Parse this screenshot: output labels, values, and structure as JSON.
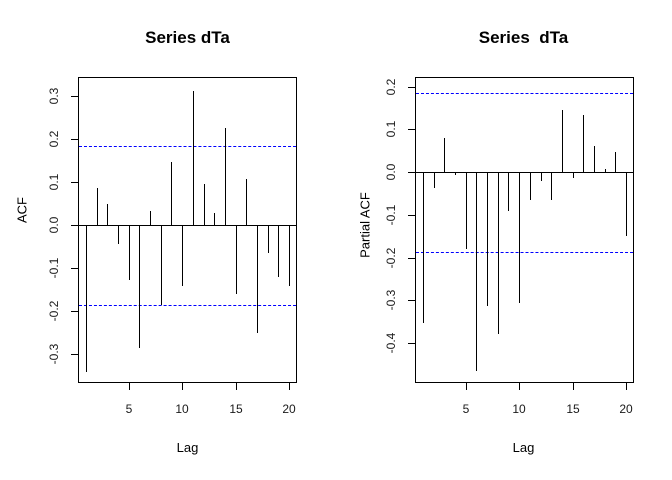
{
  "window": {
    "background": "#ffffff"
  },
  "chart_data": [
    {
      "type": "bar",
      "title": "Series dTa",
      "xlabel": "Lag",
      "ylabel": "ACF",
      "x": [
        1,
        2,
        3,
        4,
        5,
        6,
        7,
        8,
        9,
        10,
        11,
        12,
        13,
        14,
        15,
        16,
        17,
        18,
        19,
        20
      ],
      "values": [
        -0.343,
        0.088,
        0.05,
        -0.044,
        -0.127,
        -0.285,
        0.033,
        -0.186,
        0.147,
        -0.141,
        0.312,
        0.097,
        0.028,
        0.227,
        -0.16,
        0.107,
        -0.252,
        -0.066,
        -0.122,
        -0.143
      ],
      "ylim": [
        -0.364,
        0.343
      ],
      "xlim": [
        1,
        20
      ],
      "yticks": [
        0.3,
        0.2,
        0.1,
        0.0,
        -0.1,
        -0.2,
        -0.3
      ],
      "ytick_labels": [
        "0.3",
        "0.2",
        "0.1",
        "0.0",
        "-0.1",
        "-0.2",
        "-0.3"
      ],
      "xticks": [
        5,
        10,
        15,
        20
      ],
      "xtick_labels": [
        "5",
        "10",
        "15",
        "20"
      ],
      "conf_bands": [
        0.186,
        -0.186
      ],
      "conf_band_style": "dashed",
      "conf_band_color": "#0000ff",
      "bar_color": "#000000",
      "grid": false,
      "legend": "none"
    },
    {
      "type": "bar",
      "title": "Series  dTa",
      "xlabel": "Lag",
      "ylabel": "Partial ACF",
      "x": [
        1,
        2,
        3,
        4,
        5,
        6,
        7,
        8,
        9,
        10,
        11,
        12,
        13,
        14,
        15,
        16,
        17,
        18,
        19,
        20
      ],
      "values": [
        -0.352,
        -0.037,
        0.08,
        -0.006,
        -0.179,
        -0.466,
        -0.313,
        -0.38,
        -0.092,
        -0.307,
        -0.066,
        -0.02,
        -0.065,
        0.145,
        -0.014,
        0.133,
        0.062,
        0.007,
        0.048,
        -0.15
      ],
      "ylim": [
        -0.491,
        0.22
      ],
      "xlim": [
        1,
        20
      ],
      "yticks": [
        0.2,
        0.1,
        0.0,
        -0.1,
        -0.2,
        -0.3,
        -0.4
      ],
      "ytick_labels": [
        "0.2",
        "0.1",
        "0.0",
        "-0.1",
        "-0.2",
        "-0.3",
        "-0.4"
      ],
      "xticks": [
        5,
        10,
        15,
        20
      ],
      "xtick_labels": [
        "5",
        "10",
        "15",
        "20"
      ],
      "conf_bands": [
        0.186,
        -0.186
      ],
      "conf_band_style": "dashed",
      "conf_band_color": "#0000ff",
      "bar_color": "#000000",
      "grid": false,
      "legend": "none"
    }
  ]
}
